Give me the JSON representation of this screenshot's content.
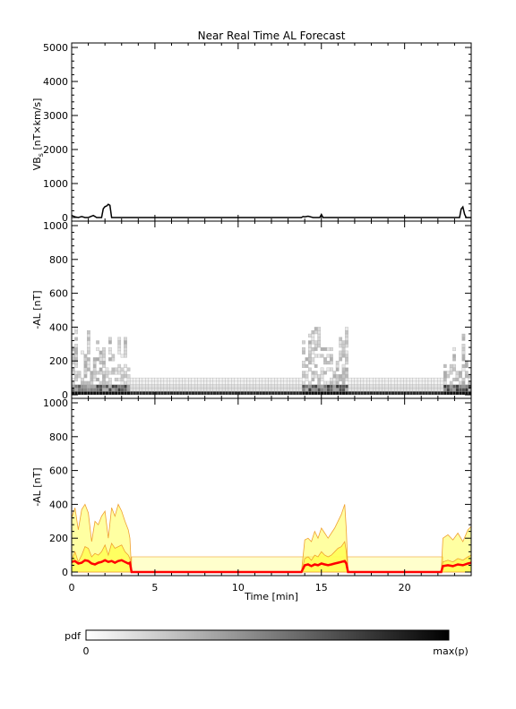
{
  "figure_title": "Near Real Time AL Forecast",
  "colors": {
    "axis": "#000000",
    "vbs_line": "#000000",
    "pdf_dark": "#000000",
    "envelope_fill": "#ffff55",
    "envelope_lines": "#f0a030",
    "median_line": "#ff0000"
  },
  "colorbar": {
    "label": "pdf",
    "min_label": "0",
    "max_label": "max(p)"
  },
  "chart_data": [
    {
      "type": "line",
      "panel": "VBs",
      "ylabel_main": "VB",
      "ylabel_sub": "s",
      "ylabel_rest": " [nT×km/s]",
      "xlabel": "",
      "xlim": [
        0,
        24
      ],
      "ylim": [
        0,
        5000
      ],
      "yticks": [
        "0",
        "1000",
        "2000",
        "3000",
        "4000",
        "5000"
      ],
      "series": [
        {
          "x": [
            0,
            0.2,
            0.4,
            0.6,
            0.8,
            1.0,
            1.3,
            1.5,
            1.8,
            1.9,
            2.0,
            2.1,
            2.2,
            2.3,
            2.4,
            2.5,
            3.0,
            5.0,
            10.0,
            13.8,
            13.9,
            14.0,
            14.2,
            14.5,
            14.9,
            15.0,
            15.1,
            15.5,
            20.0,
            23.0,
            23.3,
            23.4,
            23.5,
            23.6,
            23.7,
            24.0
          ],
          "y": [
            60,
            20,
            0,
            30,
            0,
            0,
            60,
            0,
            0,
            260,
            320,
            340,
            390,
            360,
            0,
            0,
            0,
            0,
            0,
            0,
            30,
            20,
            40,
            0,
            0,
            90,
            0,
            0,
            0,
            0,
            0,
            250,
            310,
            100,
            0,
            0
          ]
        }
      ]
    },
    {
      "type": "heatmap",
      "panel": "AL probability density",
      "ylabel": "-AL [nT]",
      "xlabel": "",
      "xlim": [
        0,
        24
      ],
      "ylim": [
        0,
        1000
      ],
      "yticks": [
        "0",
        "200",
        "400",
        "600",
        "800",
        "1000"
      ],
      "active_intervals": [
        [
          0,
          3.5
        ],
        [
          13.8,
          16.5
        ],
        [
          22.3,
          24.0
        ]
      ],
      "quiet_band_max": 100,
      "bins_nT": 20
    },
    {
      "type": "area",
      "panel": "AL forecast",
      "ylabel": "-AL [nT]",
      "xlabel": "Time [min]",
      "xlim": [
        0,
        24
      ],
      "ylim": [
        0,
        1000
      ],
      "xticks": [
        "0",
        "5",
        "10",
        "15",
        "20"
      ],
      "yticks": [
        "0",
        "200",
        "400",
        "600",
        "800",
        "1000"
      ],
      "x": [
        0,
        0.2,
        0.4,
        0.6,
        0.8,
        1.0,
        1.2,
        1.4,
        1.6,
        1.8,
        2.0,
        2.2,
        2.4,
        2.6,
        2.8,
        3.0,
        3.2,
        3.4,
        3.5,
        3.6,
        5,
        10,
        13.8,
        14.0,
        14.2,
        14.4,
        14.6,
        14.8,
        15.0,
        15.2,
        15.4,
        15.6,
        15.8,
        16.0,
        16.2,
        16.4,
        16.5,
        16.6,
        20,
        22.2,
        22.3,
        22.6,
        22.9,
        23.2,
        23.5,
        23.8,
        24.0
      ],
      "upper": [
        320,
        380,
        250,
        370,
        400,
        350,
        180,
        300,
        280,
        330,
        360,
        200,
        380,
        330,
        400,
        360,
        300,
        250,
        200,
        0,
        0,
        0,
        0,
        190,
        200,
        180,
        240,
        200,
        260,
        230,
        200,
        230,
        260,
        300,
        340,
        400,
        250,
        0,
        0,
        0,
        200,
        220,
        190,
        230,
        180,
        250,
        270
      ],
      "lower": [
        70,
        120,
        60,
        100,
        150,
        140,
        90,
        110,
        100,
        120,
        160,
        100,
        170,
        140,
        150,
        160,
        120,
        100,
        80,
        0,
        0,
        0,
        0,
        80,
        90,
        70,
        100,
        90,
        120,
        100,
        90,
        100,
        120,
        140,
        150,
        180,
        120,
        0,
        0,
        0,
        60,
        70,
        60,
        80,
        70,
        90,
        100
      ],
      "median": [
        60,
        65,
        50,
        55,
        70,
        65,
        50,
        45,
        55,
        60,
        70,
        60,
        65,
        55,
        65,
        70,
        60,
        50,
        55,
        0,
        0,
        0,
        0,
        40,
        45,
        35,
        45,
        40,
        50,
        45,
        40,
        45,
        50,
        55,
        60,
        65,
        50,
        0,
        0,
        0,
        35,
        40,
        35,
        45,
        40,
        50,
        55
      ],
      "quiet_band": [
        0,
        90
      ]
    }
  ]
}
